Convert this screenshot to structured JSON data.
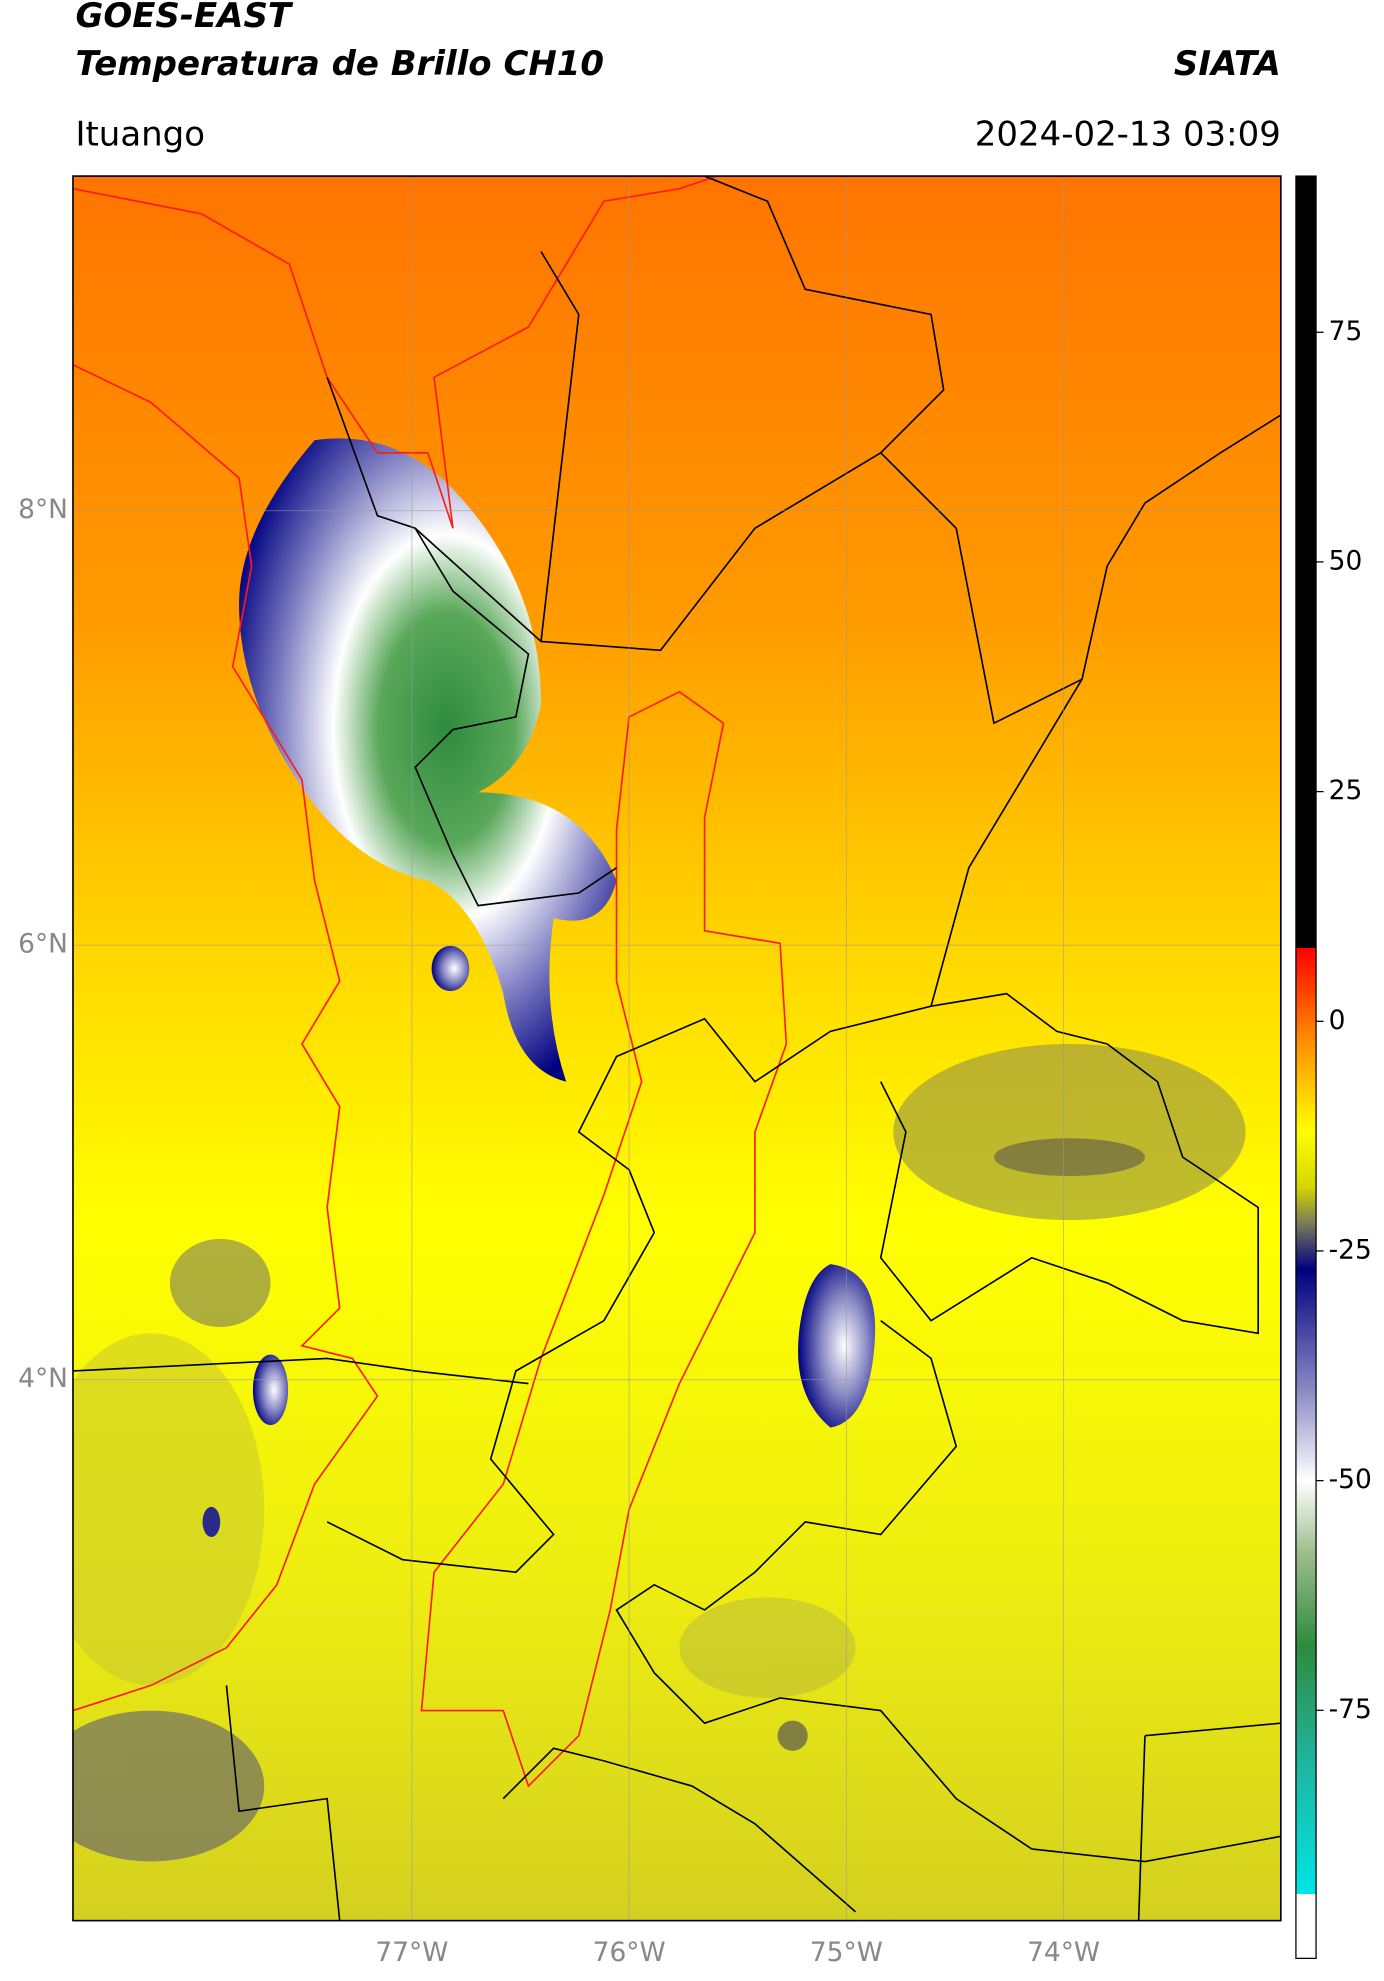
{
  "header": {
    "title": "GOES-EAST",
    "subtitle": "Temperatura de Brillo CH10",
    "brand": "SIATA",
    "location": "Ituango",
    "datetime": "2024-02-13 03:09"
  },
  "map": {
    "lonlim": [
      -78.56,
      -73.0
    ],
    "latlim": [
      1.51,
      9.54
    ],
    "grid": true,
    "lon_ticks": [
      {
        "value": -77,
        "label": "77°W"
      },
      {
        "value": -76,
        "label": "76°W"
      },
      {
        "value": -75,
        "label": "75°W"
      },
      {
        "value": -74,
        "label": "74°W"
      }
    ],
    "lat_ticks": [
      {
        "value": 8,
        "label": "8°N"
      },
      {
        "value": 6,
        "label": "6°N"
      },
      {
        "value": 4,
        "label": "4°N"
      }
    ]
  },
  "colorbar": {
    "lim": [
      -102,
      92
    ],
    "ticks": [
      75,
      50,
      25,
      0,
      -25,
      -50,
      -75
    ],
    "stops": [
      {
        "value": 92,
        "color": "#000000"
      },
      {
        "value": 8,
        "color": "#000000"
      },
      {
        "value": 8,
        "color": "#ff0000"
      },
      {
        "value": -2,
        "color": "#ff8c00"
      },
      {
        "value": -12,
        "color": "#ffff00"
      },
      {
        "value": -18,
        "color": "#d6d600"
      },
      {
        "value": -22,
        "color": "#7a7a5a"
      },
      {
        "value": -27,
        "color": "#000080"
      },
      {
        "value": -40,
        "color": "#8888c4"
      },
      {
        "value": -50,
        "color": "#ffffff"
      },
      {
        "value": -58,
        "color": "#9cbc8c"
      },
      {
        "value": -68,
        "color": "#2e8b3e"
      },
      {
        "value": -80,
        "color": "#20b29a"
      },
      {
        "value": -95,
        "color": "#00e5e5"
      },
      {
        "value": -95,
        "color": "#ffffff"
      },
      {
        "value": -102,
        "color": "#ffffff"
      }
    ]
  }
}
